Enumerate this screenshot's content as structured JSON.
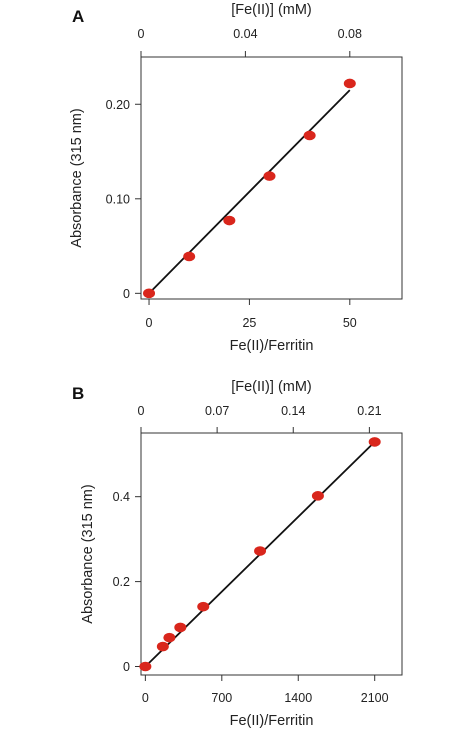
{
  "chart_data": [
    {
      "type": "scatter",
      "panel_label": "A",
      "x_top_label": "[Fe(II)] (mM)",
      "x_top_ticks": [
        "0",
        "0.04",
        "0.08"
      ],
      "x_top_tick_values": [
        0,
        0.04,
        0.08
      ],
      "x_top_lim": [
        0,
        0.1
      ],
      "xlabel": "Fe(II)/Ferritin",
      "ylabel": "Absorbance (315 nm)",
      "x_ticks": [
        "0",
        "25",
        "50"
      ],
      "x_tick_values": [
        0,
        25,
        50
      ],
      "y_ticks": [
        "0",
        "0.10",
        "0.20"
      ],
      "y_tick_values": [
        0,
        0.1,
        0.2
      ],
      "xlim": [
        -2,
        63
      ],
      "ylim": [
        -0.006,
        0.25
      ],
      "series": [
        {
          "x": [
            0,
            10,
            20,
            30,
            40,
            50
          ],
          "y": [
            0.0,
            0.039,
            0.077,
            0.124,
            0.167,
            0.222
          ],
          "color": "#d9261c"
        }
      ],
      "fit_line": {
        "x": [
          0,
          50
        ],
        "y": [
          0.0,
          0.215
        ],
        "color": "#111111"
      },
      "grid": false
    },
    {
      "type": "scatter",
      "panel_label": "B",
      "x_top_label": "[Fe(II)] (mM)",
      "x_top_ticks": [
        "0",
        "0.07",
        "0.14",
        "0.21"
      ],
      "x_top_tick_values": [
        0,
        0.07,
        0.14,
        0.21
      ],
      "x_top_lim": [
        0,
        0.24
      ],
      "xlabel": "Fe(II)/Ferritin",
      "ylabel": "Absorbance (315 nm)",
      "x_ticks": [
        "0",
        "700",
        "1400",
        "2100"
      ],
      "x_tick_values": [
        0,
        700,
        1400,
        2100
      ],
      "y_ticks": [
        "0",
        "0.2",
        "0.4"
      ],
      "y_tick_values": [
        0,
        0.2,
        0.4
      ],
      "xlim": [
        -40,
        2350
      ],
      "ylim": [
        -0.02,
        0.55
      ],
      "series": [
        {
          "x": [
            0,
            160,
            220,
            320,
            530,
            1050,
            1580,
            2100
          ],
          "y": [
            0.0,
            0.047,
            0.068,
            0.092,
            0.141,
            0.272,
            0.402,
            0.529
          ],
          "color": "#d9261c"
        }
      ],
      "fit_line": {
        "x": [
          0,
          2100
        ],
        "y": [
          0.0,
          0.529
        ],
        "color": "#111111"
      },
      "grid": false
    }
  ]
}
